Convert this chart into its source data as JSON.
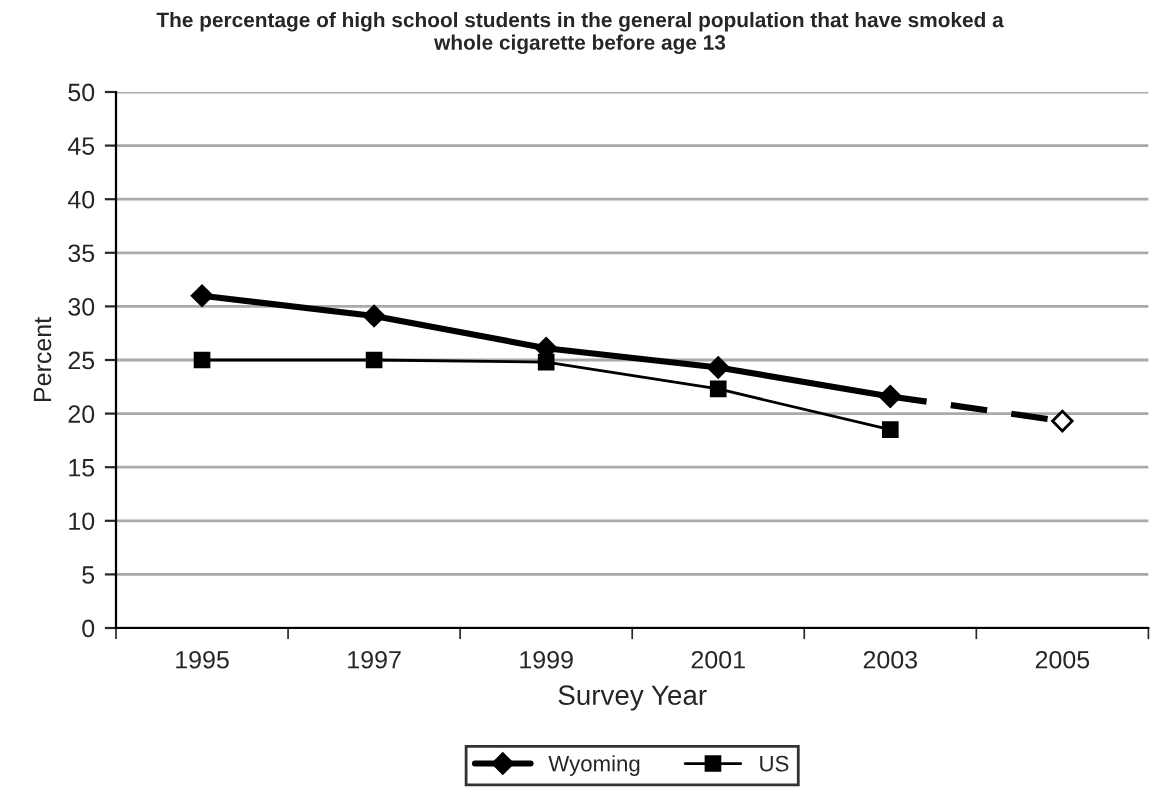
{
  "chart_data": {
    "type": "line",
    "title": "The percentage of high school students in the general population that have smoked a\nwhole cigarette before age 13",
    "xlabel": "Survey Year",
    "ylabel": "Percent",
    "categories": [
      "1995",
      "1997",
      "1999",
      "2001",
      "2003",
      "2005"
    ],
    "series": [
      {
        "name": "Wyoming",
        "color": "#000000",
        "marker": "diamond",
        "line_style": "solid",
        "values": [
          31,
          29.1,
          26.1,
          24.3,
          21.6,
          null
        ]
      },
      {
        "name": "US",
        "color": "#000000",
        "marker": "square",
        "line_style": "solid",
        "values": [
          25,
          25,
          24.8,
          22.3,
          18.5,
          null
        ]
      },
      {
        "color": "#000000",
        "marker": "diamond",
        "line_style": "dashed",
        "values": [
          null,
          null,
          null,
          null,
          21.6,
          19.3
        ]
      }
    ],
    "ylim": [
      0,
      50
    ],
    "yticks": [
      0,
      5,
      10,
      15,
      20,
      25,
      30,
      35,
      40,
      45,
      50
    ],
    "grid": "y",
    "legend": "bottom"
  }
}
